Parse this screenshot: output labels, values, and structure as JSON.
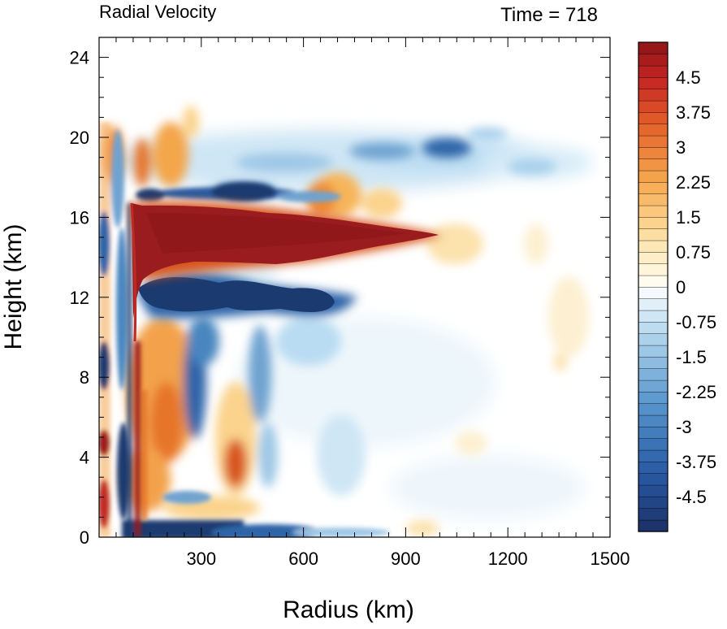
{
  "chart_data": {
    "type": "heatmap",
    "title": "Radial Velocity",
    "subtitle": "Time = 718",
    "xlabel": "Radius (km)",
    "ylabel": "Height (km)",
    "xlim": [
      0,
      1500
    ],
    "ylim": [
      0,
      25
    ],
    "x_ticks": [
      300,
      600,
      900,
      1200,
      1500
    ],
    "y_ticks": [
      0,
      4,
      8,
      12,
      16,
      20,
      24
    ],
    "x_tick_labels": [
      "300",
      "600",
      "900",
      "1200",
      "1500"
    ],
    "y_tick_labels": [
      "0",
      "4",
      "8",
      "12",
      "16",
      "20",
      "24"
    ],
    "colorbar": {
      "min": -5.25,
      "max": 5.25,
      "step": 0.25,
      "tick_values": [
        4.5,
        3.75,
        3,
        2.25,
        1.5,
        0.75,
        0,
        -0.75,
        -1.5,
        -2.25,
        -3,
        -3.75,
        -4.5
      ],
      "tick_labels": [
        "4.5",
        "3.75",
        "3",
        "2.25",
        "1.5",
        "0.75",
        "0",
        "-0.75",
        "-1.5",
        "-2.25",
        "-3",
        "-3.75",
        "-4.5"
      ]
    },
    "features": [
      {
        "kind": "outflow",
        "sign": "positive",
        "value": 5.0,
        "x_start": 100,
        "x_end": 1050,
        "height": 15
      },
      {
        "kind": "return-flow",
        "sign": "negative",
        "value": -5.0,
        "x_start": 110,
        "x_end": 700,
        "height": 11.5
      },
      {
        "kind": "upper-inflow",
        "sign": "negative",
        "value": -2.5,
        "x_start": 300,
        "x_end": 1450,
        "height": 19.5
      },
      {
        "kind": "lower-outflow",
        "sign": "positive",
        "value": 2.5,
        "x_start": 100,
        "x_end": 500,
        "height": 3
      }
    ]
  }
}
